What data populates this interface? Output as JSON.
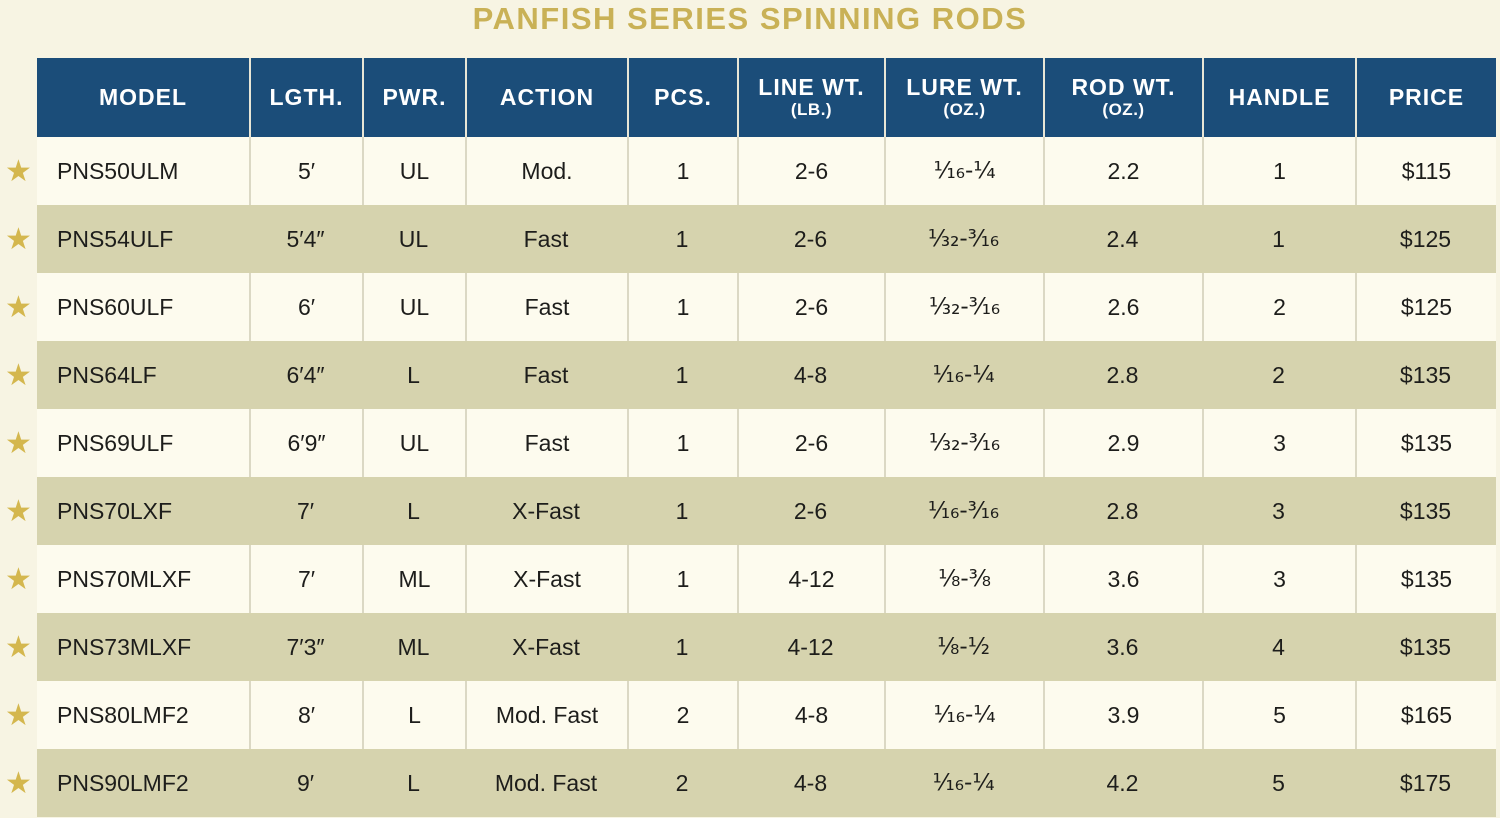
{
  "title": "PANFISH SERIES SPINNING RODS",
  "icons": {
    "star": "★"
  },
  "colors": {
    "header_bg": "#1b4d79",
    "header_text": "#ffffff",
    "title_gold": "#c9b156",
    "star_gold": "#d4b74e",
    "row_light": "#fdfbee",
    "row_dark": "#d6d3ae",
    "page_bg": "#f7f4e3",
    "body_text": "#1d1d1b"
  },
  "table": {
    "columns": [
      {
        "label": "MODEL"
      },
      {
        "label": "LGTH."
      },
      {
        "label": "PWR."
      },
      {
        "label": "ACTION"
      },
      {
        "label": "PCS."
      },
      {
        "label": "LINE WT.",
        "sub": "(LB.)"
      },
      {
        "label": "LURE WT.",
        "sub": "(OZ.)"
      },
      {
        "label": "ROD WT.",
        "sub": "(OZ.)"
      },
      {
        "label": "HANDLE"
      },
      {
        "label": "PRICE"
      }
    ],
    "rows": [
      {
        "model": "PNS50ULM",
        "length": "5′",
        "power": "UL",
        "action": "Mod.",
        "pieces": "1",
        "line_wt": "2-6",
        "lure_wt": "¹⁄₁₆-¹⁄₄",
        "rod_wt": "2.2",
        "handle": "1",
        "price": "$115"
      },
      {
        "model": "PNS54ULF",
        "length": "5′4″",
        "power": "UL",
        "action": "Fast",
        "pieces": "1",
        "line_wt": "2-6",
        "lure_wt": "¹⁄₃₂-³⁄₁₆",
        "rod_wt": "2.4",
        "handle": "1",
        "price": "$125"
      },
      {
        "model": "PNS60ULF",
        "length": "6′",
        "power": "UL",
        "action": "Fast",
        "pieces": "1",
        "line_wt": "2-6",
        "lure_wt": "¹⁄₃₂-³⁄₁₆",
        "rod_wt": "2.6",
        "handle": "2",
        "price": "$125"
      },
      {
        "model": "PNS64LF",
        "length": "6′4″",
        "power": "L",
        "action": "Fast",
        "pieces": "1",
        "line_wt": "4-8",
        "lure_wt": "¹⁄₁₆-¹⁄₄",
        "rod_wt": "2.8",
        "handle": "2",
        "price": "$135"
      },
      {
        "model": "PNS69ULF",
        "length": "6′9″",
        "power": "UL",
        "action": "Fast",
        "pieces": "1",
        "line_wt": "2-6",
        "lure_wt": "¹⁄₃₂-³⁄₁₆",
        "rod_wt": "2.9",
        "handle": "3",
        "price": "$135"
      },
      {
        "model": "PNS70LXF",
        "length": "7′",
        "power": "L",
        "action": "X-Fast",
        "pieces": "1",
        "line_wt": "2-6",
        "lure_wt": "¹⁄₁₆-³⁄₁₆",
        "rod_wt": "2.8",
        "handle": "3",
        "price": "$135"
      },
      {
        "model": "PNS70MLXF",
        "length": "7′",
        "power": "ML",
        "action": "X-Fast",
        "pieces": "1",
        "line_wt": "4-12",
        "lure_wt": "¹⁄₈-³⁄₈",
        "rod_wt": "3.6",
        "handle": "3",
        "price": "$135"
      },
      {
        "model": "PNS73MLXF",
        "length": "7′3″",
        "power": "ML",
        "action": "X-Fast",
        "pieces": "1",
        "line_wt": "4-12",
        "lure_wt": "¹⁄₈-¹⁄₂",
        "rod_wt": "3.6",
        "handle": "4",
        "price": "$135"
      },
      {
        "model": "PNS80LMF2",
        "length": "8′",
        "power": "L",
        "action": "Mod. Fast",
        "pieces": "2",
        "line_wt": "4-8",
        "lure_wt": "¹⁄₁₆-¹⁄₄",
        "rod_wt": "3.9",
        "handle": "5",
        "price": "$165"
      },
      {
        "model": "PNS90LMF2",
        "length": "9′",
        "power": "L",
        "action": "Mod. Fast",
        "pieces": "2",
        "line_wt": "4-8",
        "lure_wt": "¹⁄₁₆-¹⁄₄",
        "rod_wt": "4.2",
        "handle": "5",
        "price": "$175"
      }
    ]
  }
}
